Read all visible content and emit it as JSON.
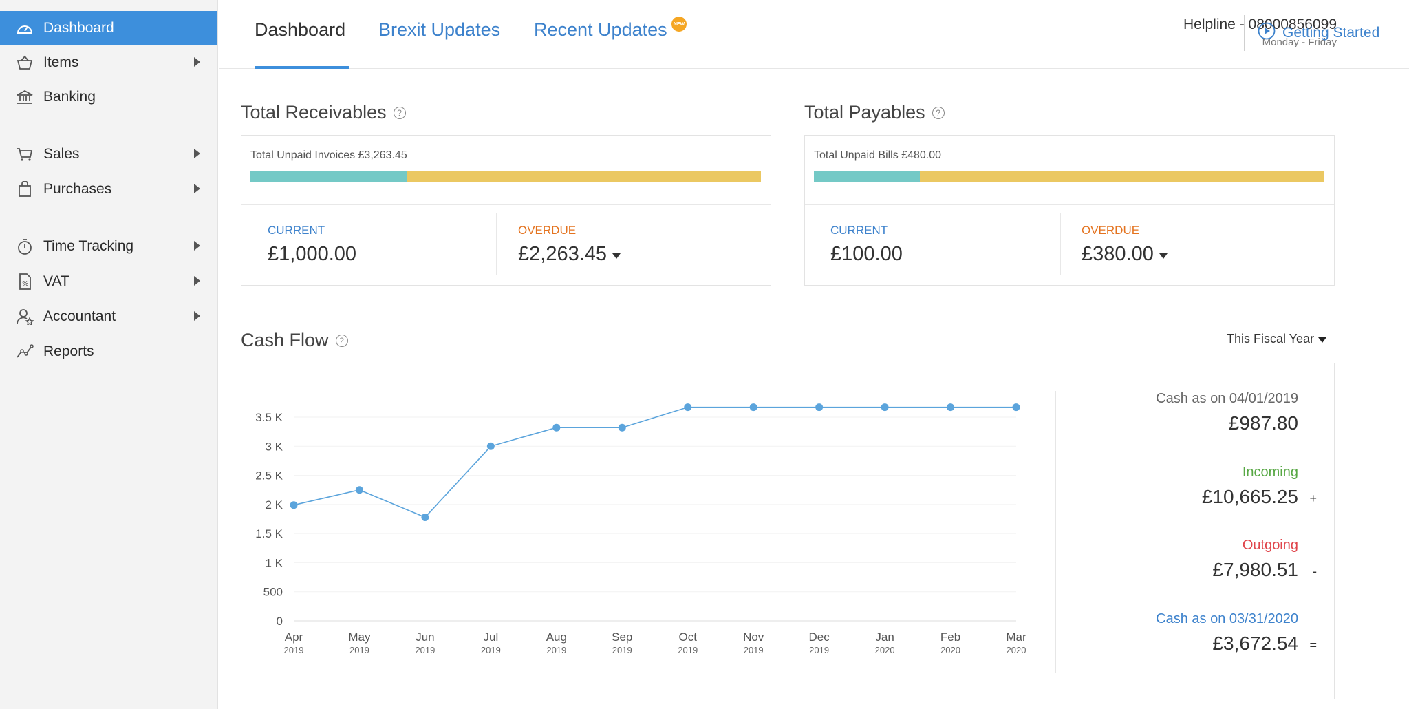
{
  "sidebar": {
    "items": [
      {
        "label": "Dashboard",
        "icon": "dashboard-icon",
        "active": true,
        "has_arrow": false
      },
      {
        "label": "Items",
        "icon": "basket-icon",
        "has_arrow": true
      },
      {
        "label": "Banking",
        "icon": "bank-icon",
        "has_arrow": false
      },
      {
        "label": "Sales",
        "icon": "cart-icon",
        "has_arrow": true
      },
      {
        "label": "Purchases",
        "icon": "bag-icon",
        "has_arrow": true
      },
      {
        "label": "Time Tracking",
        "icon": "stopwatch-icon",
        "has_arrow": true
      },
      {
        "label": "VAT",
        "icon": "percent-document-icon",
        "has_arrow": true
      },
      {
        "label": "Accountant",
        "icon": "user-star-icon",
        "has_arrow": true
      },
      {
        "label": "Reports",
        "icon": "line-chart-icon",
        "has_arrow": false
      }
    ]
  },
  "topnav": {
    "tabs": [
      {
        "label": "Dashboard",
        "active": true
      },
      {
        "label": "Brexit Updates"
      },
      {
        "label": "Recent Updates",
        "badge": "NEW"
      }
    ],
    "helpline": "Helpline - 08000856099",
    "helpline_hours": "Monday - Friday",
    "getting_started": "Getting Started"
  },
  "receivables": {
    "title": "Total Receivables",
    "bar_label": "Total Unpaid Invoices £3,263.45",
    "current_fraction": 0.306,
    "current_label": "CURRENT",
    "current_value": "£1,000.00",
    "overdue_label": "OVERDUE",
    "overdue_value": "£2,263.45"
  },
  "payables": {
    "title": "Total Payables",
    "bar_label": "Total Unpaid Bills £480.00",
    "current_fraction": 0.208,
    "current_label": "CURRENT",
    "current_value": "£100.00",
    "overdue_label": "OVERDUE",
    "overdue_value": "£380.00"
  },
  "cashflow": {
    "title": "Cash Flow",
    "period": "This Fiscal Year",
    "summary": {
      "opening_label": "Cash as on 04/01/2019",
      "opening_value": "£987.80",
      "incoming_label": "Incoming",
      "incoming_value": "£10,665.25",
      "incoming_sign": "+",
      "outgoing_label": "Outgoing",
      "outgoing_value": "£7,980.51",
      "outgoing_sign": "-",
      "closing_label": "Cash as on 03/31/2020",
      "closing_value": "£3,672.54",
      "closing_sign": "="
    },
    "colors": {
      "line": "#5ba4dc",
      "incoming": "#58a845",
      "outgoing": "#e0454b",
      "closing": "#3d82cc",
      "opening": "#666666"
    }
  },
  "chart_data": {
    "type": "line",
    "title": "Cash Flow",
    "categories": [
      "Apr",
      "May",
      "Jun",
      "Jul",
      "Aug",
      "Sep",
      "Oct",
      "Nov",
      "Dec",
      "Jan",
      "Feb",
      "Mar"
    ],
    "category_years": [
      "2019",
      "2019",
      "2019",
      "2019",
      "2019",
      "2019",
      "2019",
      "2019",
      "2019",
      "2020",
      "2020",
      "2020"
    ],
    "values": [
      1990,
      2250,
      1780,
      3000,
      3320,
      3320,
      3670,
      3670,
      3670,
      3670,
      3670,
      3670
    ],
    "ylim": [
      0,
      3500
    ],
    "yticks": [
      0,
      500,
      1000,
      1500,
      2000,
      2500,
      3000,
      3500
    ],
    "ytick_labels": [
      "0",
      "500",
      "1 K",
      "1.5 K",
      "2 K",
      "2.5 K",
      "3 K",
      "3.5 K"
    ],
    "grid": true
  }
}
